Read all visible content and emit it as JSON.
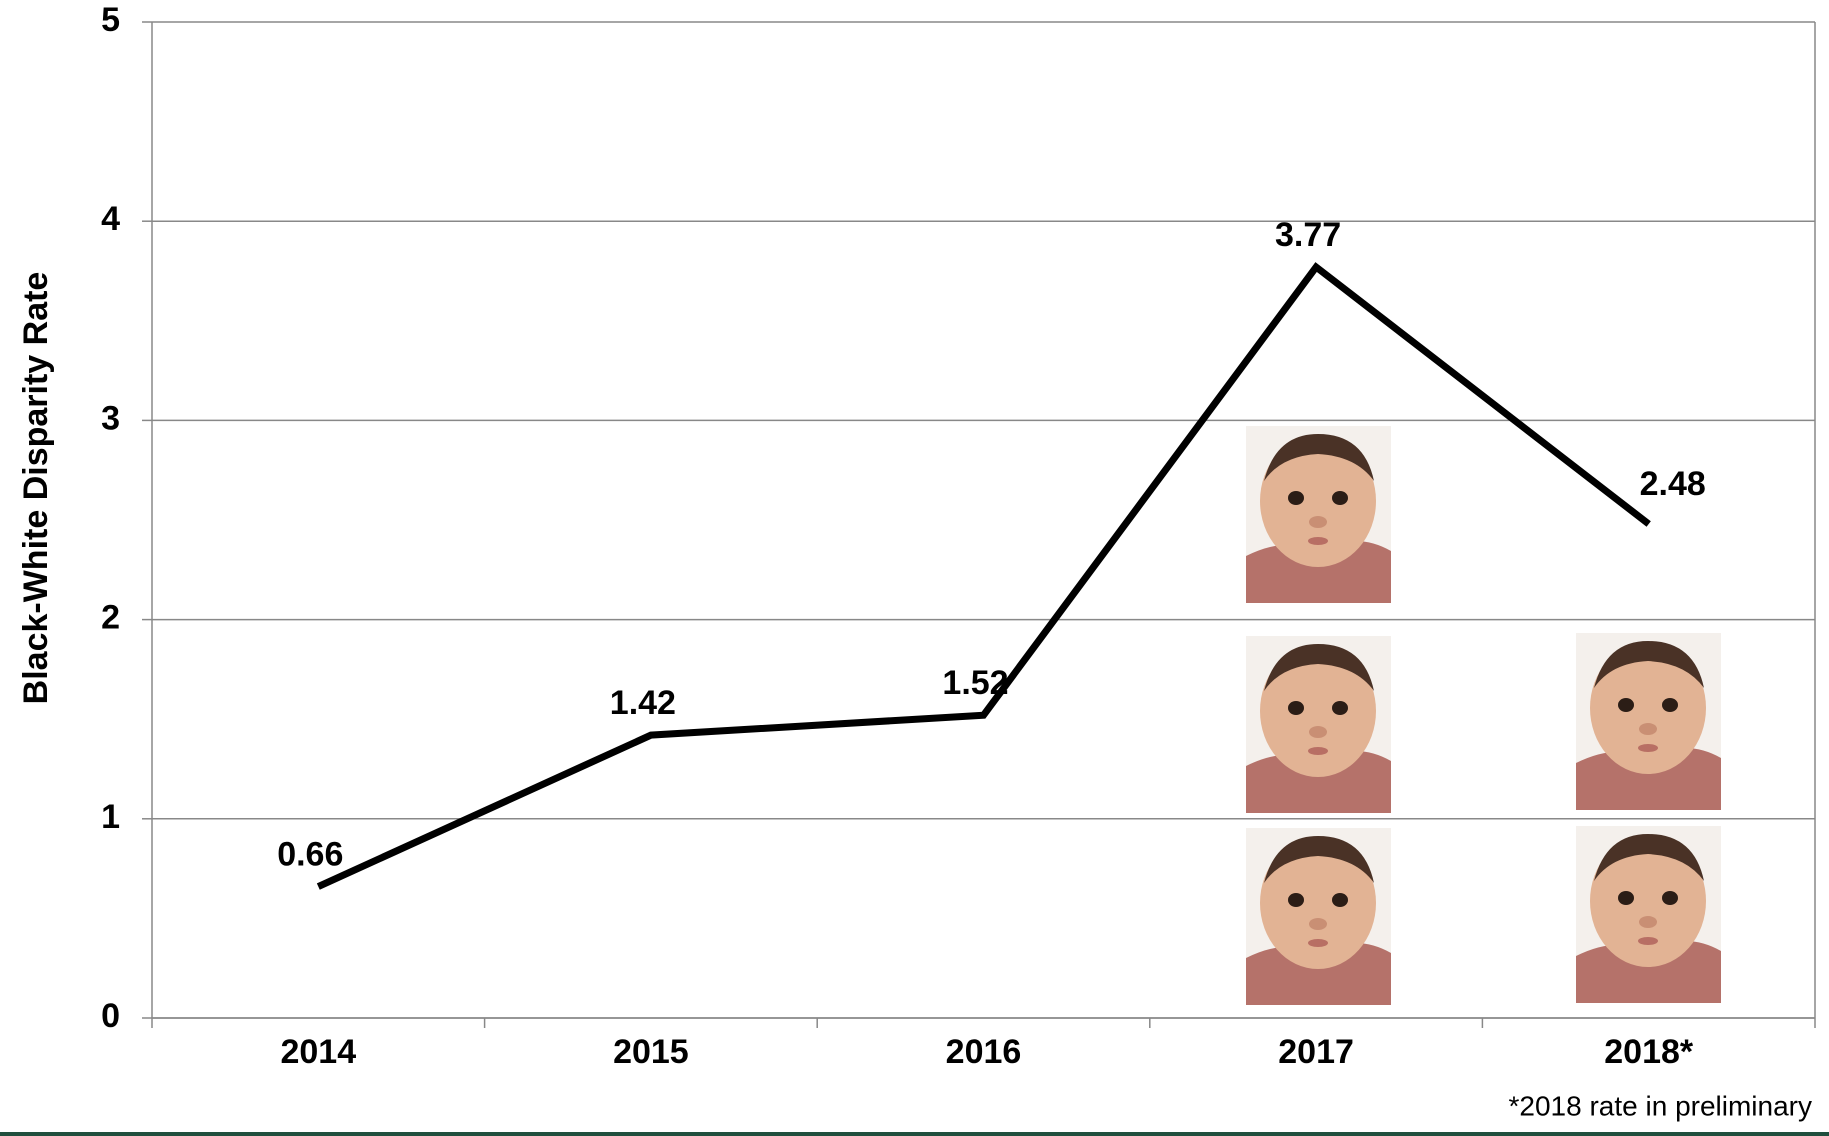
{
  "chart_data": {
    "type": "line",
    "y_label": "Black-White Disparity Rate",
    "categories": [
      "2014",
      "2015",
      "2016",
      "2017",
      "2018*"
    ],
    "values": [
      0.66,
      1.42,
      1.52,
      3.77,
      2.48
    ],
    "color": "#000000",
    "ylim": [
      0,
      5
    ],
    "yticks": [
      0,
      1,
      2,
      3,
      4,
      5
    ],
    "grid": true,
    "footnote": "*2018 rate in preliminary"
  }
}
